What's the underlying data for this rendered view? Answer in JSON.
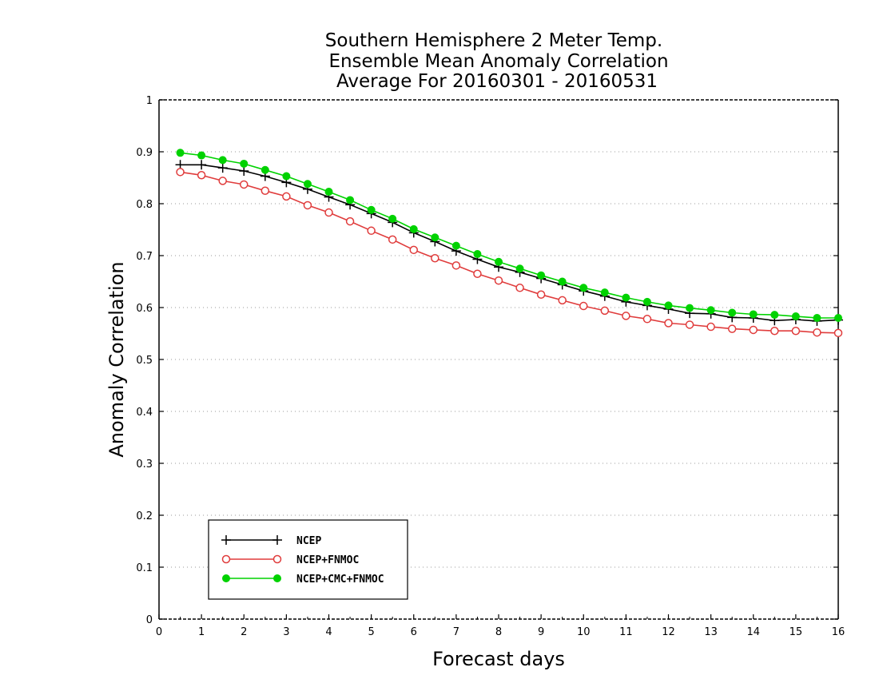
{
  "chart_data": {
    "type": "line",
    "title": [
      "Southern Hemisphere 2 Meter Temp.",
      "Ensemble Mean Anomaly Correlation",
      "Average For 20160301 - 20160531"
    ],
    "xlabel": "Forecast days",
    "ylabel": "Anomaly Correlation",
    "xlim": [
      0,
      16
    ],
    "ylim": [
      0,
      1
    ],
    "x_ticks": [
      0,
      1,
      2,
      3,
      4,
      5,
      6,
      7,
      8,
      9,
      10,
      11,
      12,
      13,
      14,
      15,
      16
    ],
    "x_tick_labels": [
      "0",
      "1",
      "2",
      "3",
      "4",
      "5",
      "6",
      "7",
      "8",
      "9",
      "10",
      "11",
      "12",
      "13",
      "14",
      "15",
      "16"
    ],
    "y_ticks": [
      0,
      0.1,
      0.2,
      0.3,
      0.4,
      0.5,
      0.6,
      0.7,
      0.8,
      0.9,
      1
    ],
    "y_tick_labels": [
      "0",
      "0.1",
      "0.2",
      "0.3",
      "0.4",
      "0.5",
      "0.6",
      "0.7",
      "0.8",
      "0.9",
      "1"
    ],
    "grid": true,
    "legend_position": "bottom-left",
    "x": [
      0.5,
      1,
      1.5,
      2,
      2.5,
      3,
      3.5,
      4,
      4.5,
      5,
      5.5,
      6,
      6.5,
      7,
      7.5,
      8,
      8.5,
      9,
      9.5,
      10,
      10.5,
      11,
      11.5,
      12,
      12.5,
      13,
      13.5,
      14,
      14.5,
      15,
      15.5,
      16
    ],
    "series": [
      {
        "name": "NCEP",
        "color": "#000000",
        "marker": "plus",
        "values": [
          0.875,
          0.875,
          0.869,
          0.863,
          0.853,
          0.841,
          0.828,
          0.813,
          0.798,
          0.781,
          0.764,
          0.744,
          0.727,
          0.709,
          0.693,
          0.678,
          0.668,
          0.656,
          0.644,
          0.632,
          0.622,
          0.611,
          0.604,
          0.597,
          0.589,
          0.588,
          0.581,
          0.58,
          0.575,
          0.577,
          0.574,
          0.576
        ]
      },
      {
        "name": "NCEP+FNMOC",
        "color": "#e03c3c",
        "marker": "open-circle",
        "values": [
          0.861,
          0.855,
          0.844,
          0.837,
          0.825,
          0.814,
          0.797,
          0.783,
          0.766,
          0.748,
          0.731,
          0.711,
          0.695,
          0.681,
          0.665,
          0.652,
          0.638,
          0.625,
          0.614,
          0.603,
          0.594,
          0.584,
          0.578,
          0.57,
          0.567,
          0.563,
          0.559,
          0.557,
          0.555,
          0.555,
          0.552,
          0.551
        ]
      },
      {
        "name": "NCEP+CMC+FNMOC",
        "color": "#00d200",
        "marker": "filled-circle",
        "values": [
          0.898,
          0.893,
          0.884,
          0.877,
          0.865,
          0.853,
          0.838,
          0.823,
          0.807,
          0.788,
          0.771,
          0.751,
          0.735,
          0.719,
          0.703,
          0.688,
          0.675,
          0.662,
          0.65,
          0.638,
          0.629,
          0.619,
          0.611,
          0.604,
          0.599,
          0.595,
          0.59,
          0.587,
          0.586,
          0.583,
          0.58,
          0.58
        ]
      }
    ]
  }
}
